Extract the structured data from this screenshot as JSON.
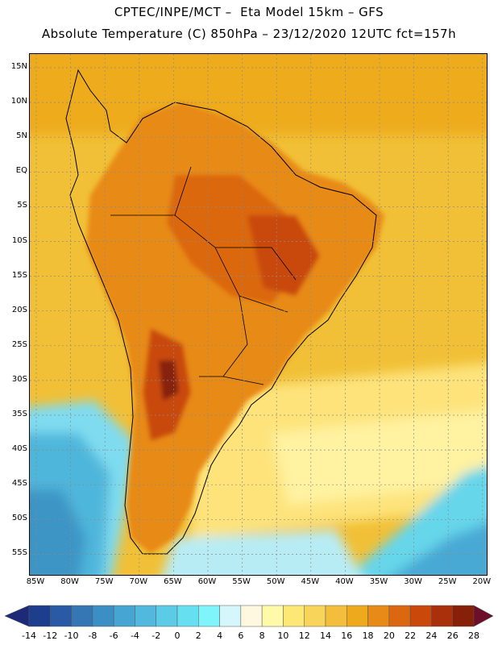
{
  "header": {
    "title_line1": "CPTEC/INPE/MCT –  Eta Model 15km – GFS",
    "title_line2": "Absolute Temperature (C) 850hPa – 23/12/2020 12UTC fct=157h"
  },
  "axes": {
    "lat_labels": [
      "15N",
      "10N",
      "5N",
      "EQ",
      "5S",
      "10S",
      "15S",
      "20S",
      "25S",
      "30S",
      "35S",
      "40S",
      "45S",
      "50S",
      "55S"
    ],
    "lon_labels": [
      "85W",
      "80W",
      "75W",
      "70W",
      "65W",
      "60W",
      "55W",
      "50W",
      "45W",
      "40W",
      "35W",
      "30W",
      "25W",
      "20W"
    ]
  },
  "colorbar": {
    "labels": [
      "-14",
      "-12",
      "-10",
      "-8",
      "-6",
      "-4",
      "-2",
      "0",
      "2",
      "4",
      "6",
      "8",
      "10",
      "12",
      "14",
      "16",
      "18",
      "20",
      "22",
      "24",
      "26",
      "28"
    ],
    "colors": [
      "#1d3e8c",
      "#2a5aa6",
      "#3576b5",
      "#3c8fc4",
      "#46a5d2",
      "#52b8dd",
      "#5ccce6",
      "#66dff0",
      "#7ff5fb",
      "#d5f6fb",
      "#fff8e0",
      "#fffaa8",
      "#fde875",
      "#f9d45a",
      "#f2be3b",
      "#eeaa1c",
      "#e88a18",
      "#db6710",
      "#c9480a",
      "#a9300a",
      "#862008"
    ],
    "under_color": "#1d2a78",
    "over_color": "#6b0f2a"
  }
}
